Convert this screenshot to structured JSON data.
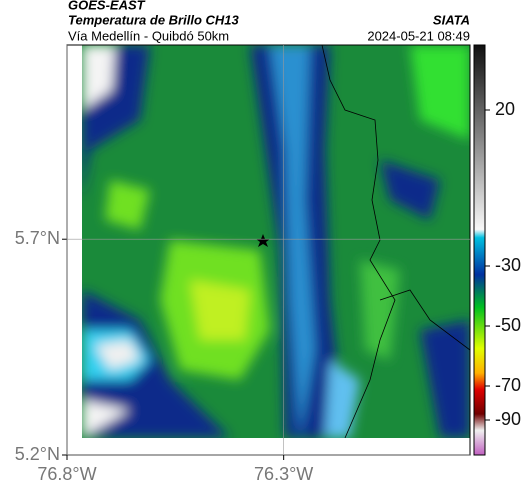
{
  "header": {
    "title": "GOES-EAST",
    "subtitle": "Temperatura de Brillo CH13",
    "route": "Vía Medellín - Quibdó 50km",
    "source": "SIATA",
    "datetime": "2024-05-21 08:49"
  },
  "map": {
    "lat_lim": [
      5.2,
      6.15
    ],
    "lon_lim": [
      -76.8,
      -75.87
    ],
    "lat_ticks": [
      {
        "value": 5.7,
        "label": "5.7°N"
      },
      {
        "value": 5.2,
        "label": "5.2°N"
      }
    ],
    "lon_ticks": [
      {
        "value": -76.8,
        "label": "76.8°W"
      },
      {
        "value": -76.3,
        "label": "76.3°W"
      }
    ]
  },
  "colorbar": {
    "ticks": [
      20,
      -30,
      -50,
      -70,
      -90
    ]
  }
}
